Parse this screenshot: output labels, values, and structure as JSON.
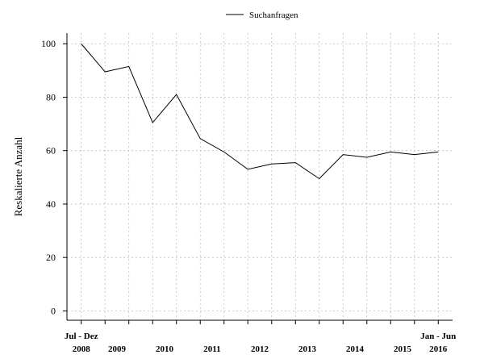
{
  "chart_data": {
    "type": "line",
    "title": "",
    "xlabel": "",
    "ylabel": "Reskalierte Anzahl",
    "legend": {
      "position": "top-center",
      "entries": [
        "Suchanfragen"
      ]
    },
    "ylim": [
      -3.5,
      104
    ],
    "yticks": [
      0,
      20,
      40,
      60,
      80,
      100
    ],
    "grid": true,
    "series": [
      {
        "name": "Suchanfragen",
        "x": [
          0,
          1,
          2,
          3,
          4,
          5,
          6,
          7,
          8,
          9,
          10,
          11,
          12,
          13,
          14,
          15
        ],
        "values": [
          100,
          89.5,
          91.5,
          70.5,
          81,
          64.5,
          59.5,
          53,
          55,
          55.5,
          49.5,
          58.5,
          57.5,
          59.5,
          58.5,
          59.5
        ]
      }
    ],
    "x_range": [
      -0.6,
      15.6
    ],
    "x_tick_positions": [
      0,
      1,
      2,
      3,
      4,
      5,
      6,
      7,
      8,
      9,
      10,
      11,
      12,
      13,
      14,
      15
    ],
    "x_labels_top": [
      {
        "x": 0,
        "text": "Jul - Dez"
      },
      {
        "x": 15,
        "text": "Jan - Jun"
      }
    ],
    "x_labels_bottom": [
      {
        "x": 0,
        "text": "2008"
      },
      {
        "x": 1.5,
        "text": "2009"
      },
      {
        "x": 3.5,
        "text": "2010"
      },
      {
        "x": 5.5,
        "text": "2011"
      },
      {
        "x": 7.5,
        "text": "2012"
      },
      {
        "x": 9.5,
        "text": "2013"
      },
      {
        "x": 11.5,
        "text": "2014"
      },
      {
        "x": 13.5,
        "text": "2015"
      },
      {
        "x": 15,
        "text": "2016"
      }
    ]
  }
}
